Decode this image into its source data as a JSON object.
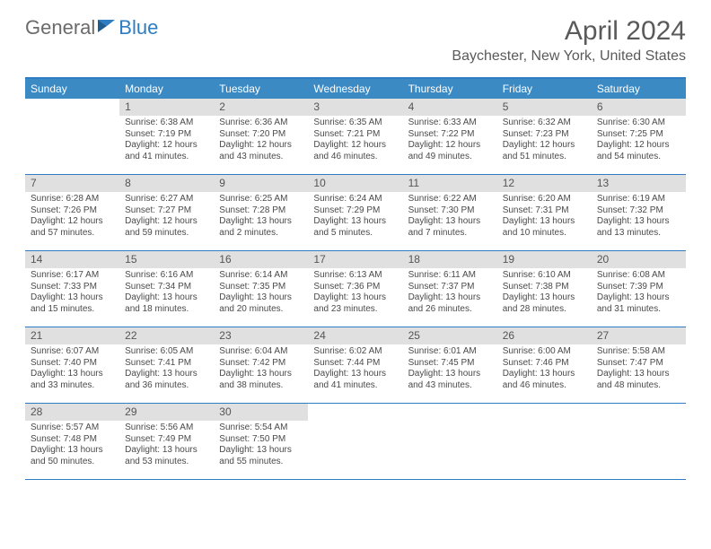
{
  "logo": {
    "text1": "General",
    "text2": "Blue"
  },
  "title": "April 2024",
  "location": "Baychester, New York, United States",
  "colors": {
    "header_bg": "#3b8ac4",
    "header_text": "#ffffff",
    "accent_border": "#2e7cc2",
    "daynum_bg": "#e0e0e0",
    "text": "#4a4a4a",
    "logo_gray": "#6b6b6b",
    "logo_blue": "#2e7cc2"
  },
  "day_names": [
    "Sunday",
    "Monday",
    "Tuesday",
    "Wednesday",
    "Thursday",
    "Friday",
    "Saturday"
  ],
  "weeks": [
    [
      {
        "n": "",
        "sr": "",
        "ss": "",
        "d1": "",
        "d2": ""
      },
      {
        "n": "1",
        "sr": "Sunrise: 6:38 AM",
        "ss": "Sunset: 7:19 PM",
        "d1": "Daylight: 12 hours",
        "d2": "and 41 minutes."
      },
      {
        "n": "2",
        "sr": "Sunrise: 6:36 AM",
        "ss": "Sunset: 7:20 PM",
        "d1": "Daylight: 12 hours",
        "d2": "and 43 minutes."
      },
      {
        "n": "3",
        "sr": "Sunrise: 6:35 AM",
        "ss": "Sunset: 7:21 PM",
        "d1": "Daylight: 12 hours",
        "d2": "and 46 minutes."
      },
      {
        "n": "4",
        "sr": "Sunrise: 6:33 AM",
        "ss": "Sunset: 7:22 PM",
        "d1": "Daylight: 12 hours",
        "d2": "and 49 minutes."
      },
      {
        "n": "5",
        "sr": "Sunrise: 6:32 AM",
        "ss": "Sunset: 7:23 PM",
        "d1": "Daylight: 12 hours",
        "d2": "and 51 minutes."
      },
      {
        "n": "6",
        "sr": "Sunrise: 6:30 AM",
        "ss": "Sunset: 7:25 PM",
        "d1": "Daylight: 12 hours",
        "d2": "and 54 minutes."
      }
    ],
    [
      {
        "n": "7",
        "sr": "Sunrise: 6:28 AM",
        "ss": "Sunset: 7:26 PM",
        "d1": "Daylight: 12 hours",
        "d2": "and 57 minutes."
      },
      {
        "n": "8",
        "sr": "Sunrise: 6:27 AM",
        "ss": "Sunset: 7:27 PM",
        "d1": "Daylight: 12 hours",
        "d2": "and 59 minutes."
      },
      {
        "n": "9",
        "sr": "Sunrise: 6:25 AM",
        "ss": "Sunset: 7:28 PM",
        "d1": "Daylight: 13 hours",
        "d2": "and 2 minutes."
      },
      {
        "n": "10",
        "sr": "Sunrise: 6:24 AM",
        "ss": "Sunset: 7:29 PM",
        "d1": "Daylight: 13 hours",
        "d2": "and 5 minutes."
      },
      {
        "n": "11",
        "sr": "Sunrise: 6:22 AM",
        "ss": "Sunset: 7:30 PM",
        "d1": "Daylight: 13 hours",
        "d2": "and 7 minutes."
      },
      {
        "n": "12",
        "sr": "Sunrise: 6:20 AM",
        "ss": "Sunset: 7:31 PM",
        "d1": "Daylight: 13 hours",
        "d2": "and 10 minutes."
      },
      {
        "n": "13",
        "sr": "Sunrise: 6:19 AM",
        "ss": "Sunset: 7:32 PM",
        "d1": "Daylight: 13 hours",
        "d2": "and 13 minutes."
      }
    ],
    [
      {
        "n": "14",
        "sr": "Sunrise: 6:17 AM",
        "ss": "Sunset: 7:33 PM",
        "d1": "Daylight: 13 hours",
        "d2": "and 15 minutes."
      },
      {
        "n": "15",
        "sr": "Sunrise: 6:16 AM",
        "ss": "Sunset: 7:34 PM",
        "d1": "Daylight: 13 hours",
        "d2": "and 18 minutes."
      },
      {
        "n": "16",
        "sr": "Sunrise: 6:14 AM",
        "ss": "Sunset: 7:35 PM",
        "d1": "Daylight: 13 hours",
        "d2": "and 20 minutes."
      },
      {
        "n": "17",
        "sr": "Sunrise: 6:13 AM",
        "ss": "Sunset: 7:36 PM",
        "d1": "Daylight: 13 hours",
        "d2": "and 23 minutes."
      },
      {
        "n": "18",
        "sr": "Sunrise: 6:11 AM",
        "ss": "Sunset: 7:37 PM",
        "d1": "Daylight: 13 hours",
        "d2": "and 26 minutes."
      },
      {
        "n": "19",
        "sr": "Sunrise: 6:10 AM",
        "ss": "Sunset: 7:38 PM",
        "d1": "Daylight: 13 hours",
        "d2": "and 28 minutes."
      },
      {
        "n": "20",
        "sr": "Sunrise: 6:08 AM",
        "ss": "Sunset: 7:39 PM",
        "d1": "Daylight: 13 hours",
        "d2": "and 31 minutes."
      }
    ],
    [
      {
        "n": "21",
        "sr": "Sunrise: 6:07 AM",
        "ss": "Sunset: 7:40 PM",
        "d1": "Daylight: 13 hours",
        "d2": "and 33 minutes."
      },
      {
        "n": "22",
        "sr": "Sunrise: 6:05 AM",
        "ss": "Sunset: 7:41 PM",
        "d1": "Daylight: 13 hours",
        "d2": "and 36 minutes."
      },
      {
        "n": "23",
        "sr": "Sunrise: 6:04 AM",
        "ss": "Sunset: 7:42 PM",
        "d1": "Daylight: 13 hours",
        "d2": "and 38 minutes."
      },
      {
        "n": "24",
        "sr": "Sunrise: 6:02 AM",
        "ss": "Sunset: 7:44 PM",
        "d1": "Daylight: 13 hours",
        "d2": "and 41 minutes."
      },
      {
        "n": "25",
        "sr": "Sunrise: 6:01 AM",
        "ss": "Sunset: 7:45 PM",
        "d1": "Daylight: 13 hours",
        "d2": "and 43 minutes."
      },
      {
        "n": "26",
        "sr": "Sunrise: 6:00 AM",
        "ss": "Sunset: 7:46 PM",
        "d1": "Daylight: 13 hours",
        "d2": "and 46 minutes."
      },
      {
        "n": "27",
        "sr": "Sunrise: 5:58 AM",
        "ss": "Sunset: 7:47 PM",
        "d1": "Daylight: 13 hours",
        "d2": "and 48 minutes."
      }
    ],
    [
      {
        "n": "28",
        "sr": "Sunrise: 5:57 AM",
        "ss": "Sunset: 7:48 PM",
        "d1": "Daylight: 13 hours",
        "d2": "and 50 minutes."
      },
      {
        "n": "29",
        "sr": "Sunrise: 5:56 AM",
        "ss": "Sunset: 7:49 PM",
        "d1": "Daylight: 13 hours",
        "d2": "and 53 minutes."
      },
      {
        "n": "30",
        "sr": "Sunrise: 5:54 AM",
        "ss": "Sunset: 7:50 PM",
        "d1": "Daylight: 13 hours",
        "d2": "and 55 minutes."
      },
      {
        "n": "",
        "sr": "",
        "ss": "",
        "d1": "",
        "d2": ""
      },
      {
        "n": "",
        "sr": "",
        "ss": "",
        "d1": "",
        "d2": ""
      },
      {
        "n": "",
        "sr": "",
        "ss": "",
        "d1": "",
        "d2": ""
      },
      {
        "n": "",
        "sr": "",
        "ss": "",
        "d1": "",
        "d2": ""
      }
    ]
  ]
}
